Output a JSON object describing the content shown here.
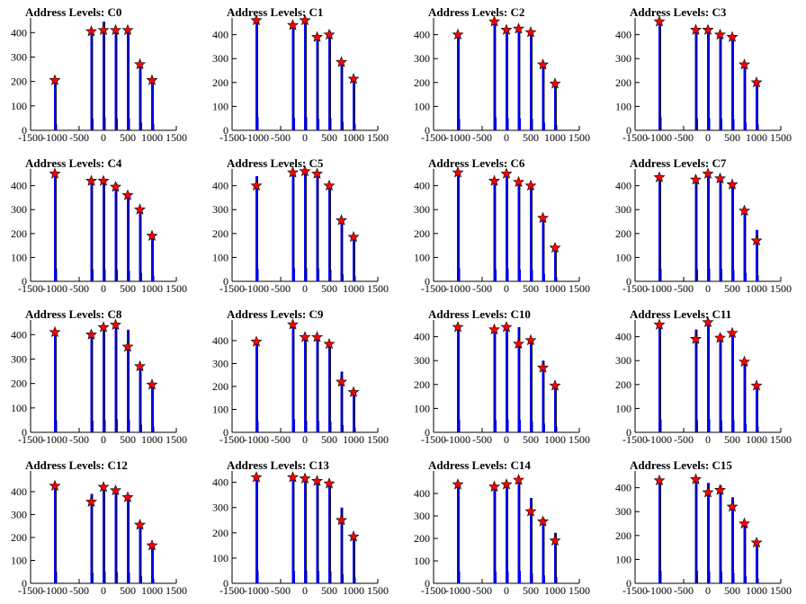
{
  "axes": {
    "x_ticks": [
      -1500,
      -1000,
      -500,
      0,
      500,
      1000,
      1500
    ],
    "x_tick_labels": [
      "-1500",
      "-1000",
      "-500",
      "0",
      "500",
      "1000",
      "1500"
    ],
    "xlim": [
      -1500,
      1500
    ],
    "y_tick_labels": [
      "0",
      "100",
      "200",
      "300",
      "400"
    ]
  },
  "colors": {
    "bars": "#0000ff",
    "outline": "#000000",
    "marker": "#ff0000"
  },
  "chart_data": [
    {
      "type": "bar",
      "title": "Address Levels: C0",
      "ylim": [
        0,
        460
      ],
      "x": [
        -1000,
        -250,
        0,
        250,
        500,
        750,
        1000
      ],
      "values": [
        205,
        405,
        445,
        410,
        405,
        260,
        205
      ],
      "peaks": [
        205,
        405,
        410,
        410,
        410,
        270,
        205
      ]
    },
    {
      "type": "bar",
      "title": "Address Levels: C1",
      "ylim": [
        0,
        470
      ],
      "x": [
        -1000,
        -250,
        0,
        250,
        500,
        750,
        1000
      ],
      "values": [
        460,
        440,
        460,
        400,
        415,
        290,
        215
      ],
      "peaks": [
        460,
        440,
        460,
        390,
        400,
        285,
        215
      ]
    },
    {
      "type": "bar",
      "title": "Address Levels: C2",
      "ylim": [
        0,
        470
      ],
      "x": [
        -1000,
        -250,
        0,
        250,
        500,
        750,
        1000
      ],
      "values": [
        400,
        455,
        420,
        425,
        410,
        275,
        195
      ],
      "peaks": [
        400,
        455,
        420,
        425,
        410,
        275,
        195
      ]
    },
    {
      "type": "bar",
      "title": "Address Levels: C3",
      "ylim": [
        0,
        470
      ],
      "x": [
        -1000,
        -250,
        0,
        250,
        500,
        750,
        1000
      ],
      "values": [
        455,
        420,
        425,
        410,
        395,
        275,
        205
      ],
      "peaks": [
        455,
        420,
        420,
        400,
        390,
        275,
        200
      ]
    },
    {
      "type": "bar",
      "title": "Address Levels: C4",
      "ylim": [
        0,
        470
      ],
      "x": [
        -1000,
        -250,
        0,
        250,
        500,
        750,
        1000
      ],
      "values": [
        450,
        420,
        420,
        410,
        370,
        295,
        190
      ],
      "peaks": [
        450,
        420,
        420,
        395,
        360,
        300,
        190
      ]
    },
    {
      "type": "bar",
      "title": "Address Levels: C5",
      "ylim": [
        0,
        470
      ],
      "x": [
        -1000,
        -250,
        0,
        250,
        500,
        750,
        1000
      ],
      "values": [
        440,
        455,
        460,
        445,
        400,
        245,
        180
      ],
      "peaks": [
        400,
        455,
        460,
        450,
        400,
        255,
        185
      ]
    },
    {
      "type": "bar",
      "title": "Address Levels: C6",
      "ylim": [
        0,
        470
      ],
      "x": [
        -1000,
        -250,
        0,
        250,
        500,
        750,
        1000
      ],
      "values": [
        455,
        420,
        445,
        410,
        405,
        255,
        145
      ],
      "peaks": [
        455,
        420,
        450,
        415,
        400,
        265,
        140
      ]
    },
    {
      "type": "bar",
      "title": "Address Levels: C7",
      "ylim": [
        0,
        470
      ],
      "x": [
        -1000,
        -250,
        0,
        250,
        500,
        750,
        1000
      ],
      "values": [
        435,
        420,
        445,
        430,
        400,
        290,
        215
      ],
      "peaks": [
        435,
        425,
        450,
        430,
        405,
        295,
        170
      ]
    },
    {
      "type": "bar",
      "title": "Address Levels: C8",
      "ylim": [
        0,
        460
      ],
      "x": [
        -1000,
        -250,
        0,
        250,
        500,
        750,
        1000
      ],
      "values": [
        410,
        400,
        425,
        450,
        420,
        260,
        195
      ],
      "peaks": [
        410,
        400,
        430,
        440,
        350,
        270,
        195
      ]
    },
    {
      "type": "bar",
      "title": "Address Levels: C9",
      "ylim": [
        0,
        490
      ],
      "x": [
        -1000,
        -250,
        0,
        250,
        500,
        750,
        1000
      ],
      "values": [
        395,
        480,
        420,
        415,
        390,
        265,
        175
      ],
      "peaks": [
        395,
        470,
        415,
        415,
        385,
        220,
        175
      ]
    },
    {
      "type": "bar",
      "title": "Address Levels: C10",
      "ylim": [
        0,
        470
      ],
      "x": [
        -1000,
        -250,
        0,
        250,
        500,
        750,
        1000
      ],
      "values": [
        440,
        435,
        450,
        440,
        385,
        300,
        200
      ],
      "peaks": [
        440,
        430,
        440,
        370,
        385,
        270,
        195
      ]
    },
    {
      "type": "bar",
      "title": "Address Levels: C11",
      "ylim": [
        0,
        470
      ],
      "x": [
        -1000,
        -250,
        0,
        250,
        500,
        750,
        1000
      ],
      "values": [
        450,
        430,
        455,
        410,
        420,
        295,
        195
      ],
      "peaks": [
        450,
        390,
        460,
        395,
        415,
        295,
        195
      ]
    },
    {
      "type": "bar",
      "title": "Address Levels: C12",
      "ylim": [
        0,
        490
      ],
      "x": [
        -1000,
        -250,
        0,
        250,
        500,
        750,
        1000
      ],
      "values": [
        425,
        390,
        425,
        410,
        385,
        255,
        175
      ],
      "peaks": [
        425,
        355,
        420,
        405,
        375,
        255,
        165
      ]
    },
    {
      "type": "bar",
      "title": "Address Levels: C13",
      "ylim": [
        0,
        445
      ],
      "x": [
        -1000,
        -250,
        0,
        250,
        500,
        750,
        1000
      ],
      "values": [
        425,
        420,
        420,
        410,
        400,
        300,
        190
      ],
      "peaks": [
        420,
        420,
        415,
        405,
        395,
        250,
        185
      ]
    },
    {
      "type": "bar",
      "title": "Address Levels: C14",
      "ylim": [
        0,
        500
      ],
      "x": [
        -1000,
        -250,
        0,
        250,
        500,
        750,
        1000
      ],
      "values": [
        445,
        440,
        450,
        460,
        380,
        290,
        225
      ],
      "peaks": [
        440,
        430,
        440,
        460,
        320,
        275,
        190
      ]
    },
    {
      "type": "bar",
      "title": "Address Levels: C15",
      "ylim": [
        0,
        470
      ],
      "x": [
        -1000,
        -250,
        0,
        250,
        500,
        750,
        1000
      ],
      "values": [
        430,
        440,
        420,
        410,
        360,
        250,
        175
      ],
      "peaks": [
        430,
        435,
        380,
        390,
        320,
        250,
        170
      ]
    }
  ]
}
